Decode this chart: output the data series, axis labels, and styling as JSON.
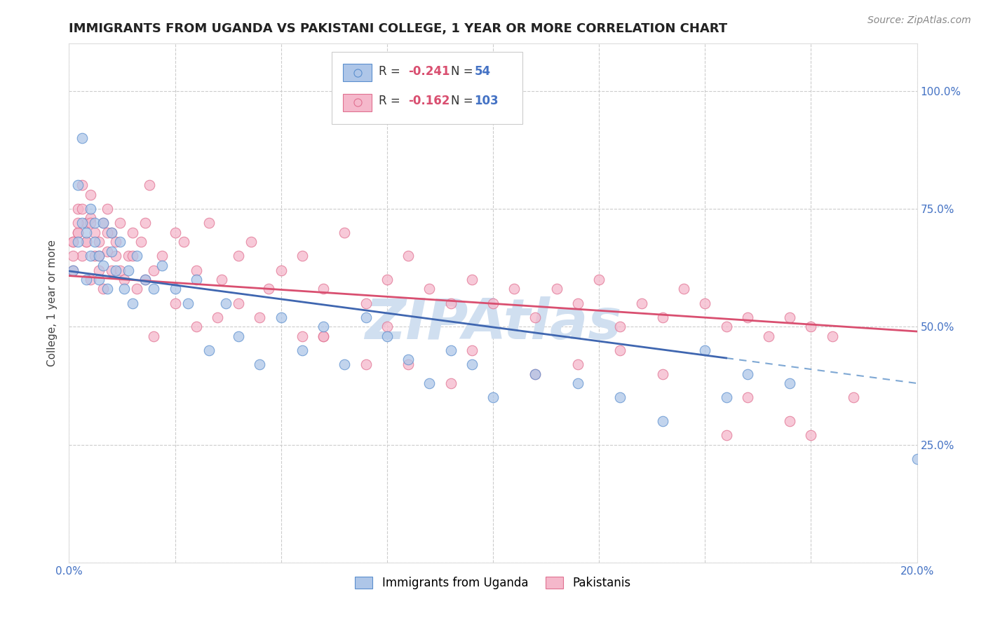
{
  "title": "IMMIGRANTS FROM UGANDA VS PAKISTANI COLLEGE, 1 YEAR OR MORE CORRELATION CHART",
  "source": "Source: ZipAtlas.com",
  "legend_label1": "Immigrants from Uganda",
  "legend_label2": "Pakistanis",
  "r1": -0.241,
  "n1": 54,
  "r2": -0.162,
  "n2": 103,
  "color_uganda_fill": "#aec6e8",
  "color_uganda_edge": "#5b8fce",
  "color_pakistan_fill": "#f5b8cb",
  "color_pakistan_edge": "#e07090",
  "color_trendline_blue": "#3f66b0",
  "color_trendline_pink": "#d94f70",
  "color_trendline_dashed": "#7fa8d4",
  "watermark_color": "#d0dff0",
  "title_fontsize": 13,
  "axis_label_color": "#4472c4",
  "legend_r_color": "#d94f70",
  "legend_n_color": "#4472c4",
  "ylabel": "College, 1 year or more",
  "xlim": [
    0.0,
    0.2
  ],
  "ylim": [
    0.0,
    1.1
  ],
  "trendline_blue_x0": 0.0,
  "trendline_blue_y0": 0.618,
  "trendline_blue_x1": 0.2,
  "trendline_blue_y1": 0.38,
  "trendline_blue_solid_end": 0.155,
  "trendline_pink_x0": 0.0,
  "trendline_pink_y0": 0.608,
  "trendline_pink_x1": 0.2,
  "trendline_pink_y1": 0.49,
  "uganda_x": [
    0.001,
    0.002,
    0.002,
    0.003,
    0.003,
    0.004,
    0.004,
    0.005,
    0.005,
    0.006,
    0.006,
    0.007,
    0.007,
    0.008,
    0.008,
    0.009,
    0.01,
    0.01,
    0.011,
    0.012,
    0.013,
    0.014,
    0.015,
    0.016,
    0.018,
    0.02,
    0.022,
    0.025,
    0.028,
    0.03,
    0.033,
    0.037,
    0.04,
    0.045,
    0.05,
    0.055,
    0.06,
    0.065,
    0.07,
    0.075,
    0.08,
    0.085,
    0.09,
    0.095,
    0.1,
    0.11,
    0.12,
    0.13,
    0.14,
    0.15,
    0.155,
    0.16,
    0.17,
    0.2
  ],
  "uganda_y": [
    0.62,
    0.68,
    0.8,
    0.72,
    0.9,
    0.6,
    0.7,
    0.75,
    0.65,
    0.68,
    0.72,
    0.6,
    0.65,
    0.63,
    0.72,
    0.58,
    0.66,
    0.7,
    0.62,
    0.68,
    0.58,
    0.62,
    0.55,
    0.65,
    0.6,
    0.58,
    0.63,
    0.58,
    0.55,
    0.6,
    0.45,
    0.55,
    0.48,
    0.42,
    0.52,
    0.45,
    0.5,
    0.42,
    0.52,
    0.48,
    0.43,
    0.38,
    0.45,
    0.42,
    0.35,
    0.4,
    0.38,
    0.35,
    0.3,
    0.45,
    0.35,
    0.4,
    0.38,
    0.22
  ],
  "pakistan_x": [
    0.001,
    0.001,
    0.002,
    0.002,
    0.003,
    0.003,
    0.004,
    0.004,
    0.005,
    0.005,
    0.005,
    0.006,
    0.006,
    0.007,
    0.007,
    0.008,
    0.008,
    0.009,
    0.009,
    0.01,
    0.01,
    0.011,
    0.011,
    0.012,
    0.013,
    0.014,
    0.015,
    0.016,
    0.017,
    0.018,
    0.019,
    0.02,
    0.022,
    0.025,
    0.027,
    0.03,
    0.033,
    0.036,
    0.04,
    0.043,
    0.047,
    0.05,
    0.055,
    0.06,
    0.065,
    0.07,
    0.075,
    0.08,
    0.085,
    0.09,
    0.095,
    0.1,
    0.105,
    0.11,
    0.115,
    0.12,
    0.125,
    0.13,
    0.135,
    0.14,
    0.145,
    0.15,
    0.155,
    0.16,
    0.165,
    0.17,
    0.175,
    0.18,
    0.11,
    0.13,
    0.06,
    0.08,
    0.04,
    0.055,
    0.07,
    0.09,
    0.035,
    0.025,
    0.018,
    0.015,
    0.012,
    0.009,
    0.007,
    0.005,
    0.004,
    0.003,
    0.002,
    0.002,
    0.001,
    0.001,
    0.02,
    0.03,
    0.045,
    0.06,
    0.075,
    0.095,
    0.12,
    0.14,
    0.16,
    0.17,
    0.155,
    0.175,
    0.185
  ],
  "pakistan_y": [
    0.62,
    0.68,
    0.7,
    0.75,
    0.65,
    0.8,
    0.72,
    0.68,
    0.6,
    0.73,
    0.78,
    0.65,
    0.7,
    0.62,
    0.68,
    0.72,
    0.58,
    0.66,
    0.75,
    0.62,
    0.7,
    0.65,
    0.68,
    0.72,
    0.6,
    0.65,
    0.7,
    0.58,
    0.68,
    0.72,
    0.8,
    0.62,
    0.65,
    0.7,
    0.68,
    0.62,
    0.72,
    0.6,
    0.65,
    0.68,
    0.58,
    0.62,
    0.65,
    0.58,
    0.7,
    0.55,
    0.6,
    0.65,
    0.58,
    0.55,
    0.6,
    0.55,
    0.58,
    0.52,
    0.58,
    0.55,
    0.6,
    0.5,
    0.55,
    0.52,
    0.58,
    0.55,
    0.5,
    0.52,
    0.48,
    0.52,
    0.5,
    0.48,
    0.4,
    0.45,
    0.48,
    0.42,
    0.55,
    0.48,
    0.42,
    0.38,
    0.52,
    0.55,
    0.6,
    0.65,
    0.62,
    0.7,
    0.65,
    0.72,
    0.68,
    0.75,
    0.7,
    0.72,
    0.65,
    0.68,
    0.48,
    0.5,
    0.52,
    0.48,
    0.5,
    0.45,
    0.42,
    0.4,
    0.35,
    0.3,
    0.27,
    0.27,
    0.35
  ]
}
